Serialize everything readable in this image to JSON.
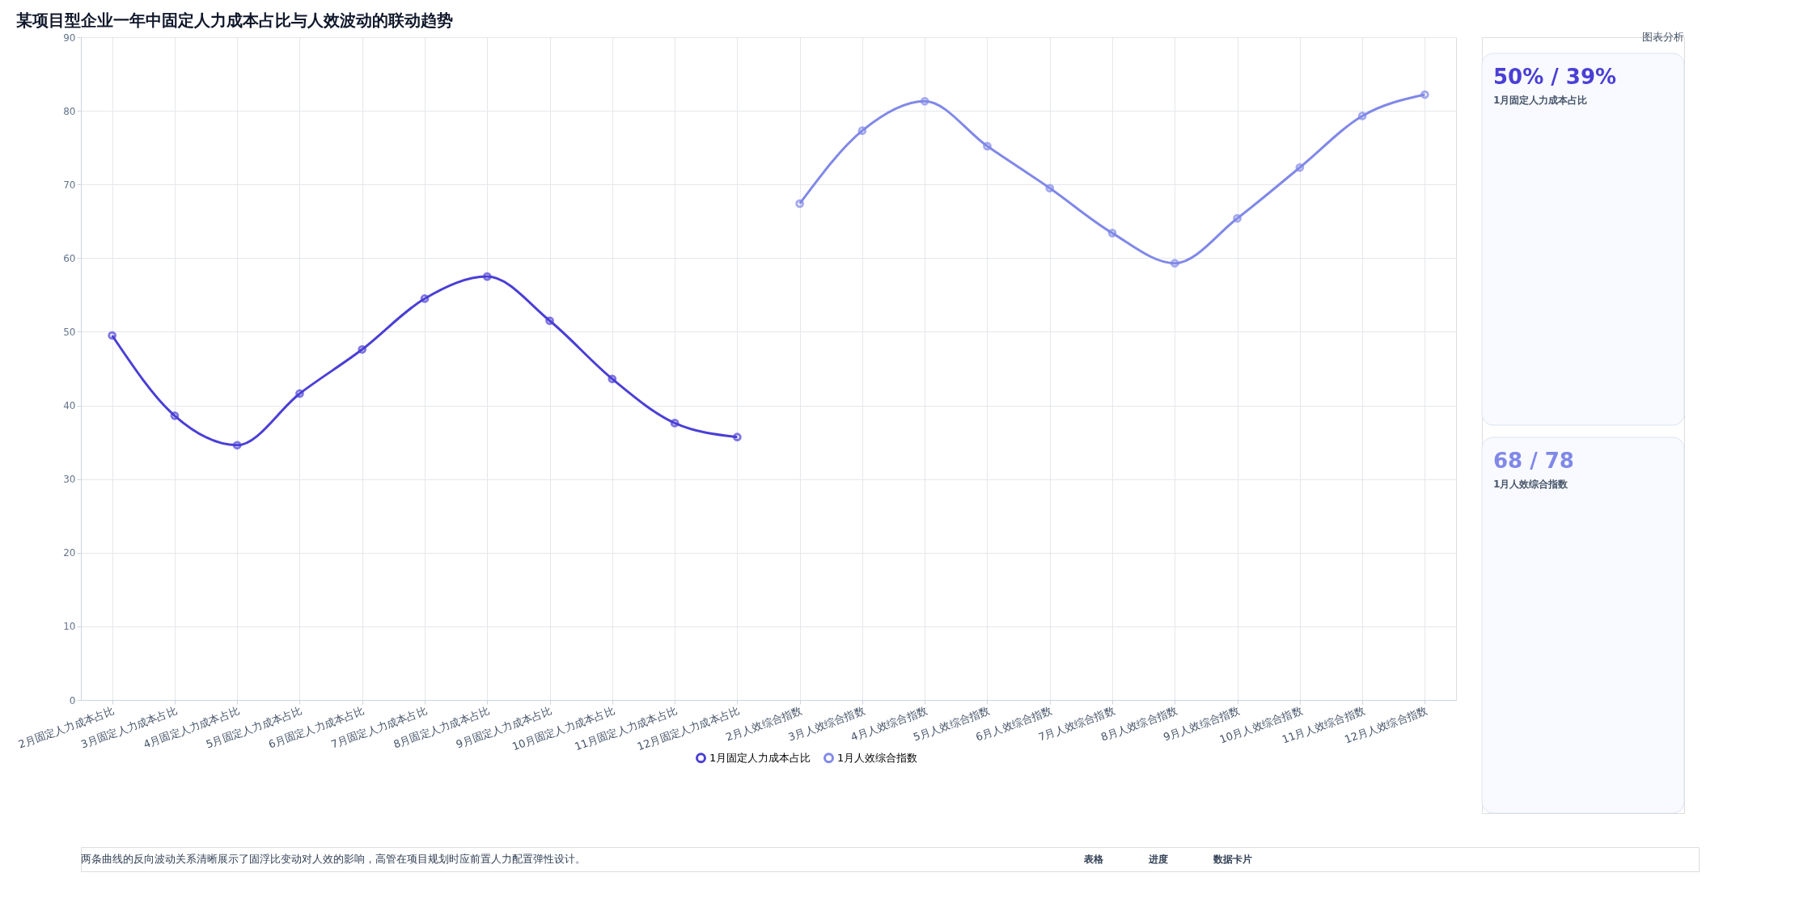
{
  "chart_data": {
    "type": "line",
    "title": "某项目型企业一年中固定人力成本占比与人效波动的联动趋势",
    "categories": [
      "2月固定人力成本占比",
      "3月固定人力成本占比",
      "4月固定人力成本占比",
      "5月固定人力成本占比",
      "6月固定人力成本占比",
      "7月固定人力成本占比",
      "8月固定人力成本占比",
      "9月固定人力成本占比",
      "10月固定人力成本占比",
      "11月固定人力成本占比",
      "12月固定人力成本占比",
      "2月人效综合指数",
      "3月人效综合指数",
      "4月人效综合指数",
      "5月人效综合指数",
      "6月人效综合指数",
      "7月人效综合指数",
      "8月人效综合指数",
      "9月人效综合指数",
      "10月人效综合指数",
      "11月人效综合指数",
      "12月人效综合指数"
    ],
    "series": [
      {
        "name": "1月固定人力成本占比",
        "color": "#4a3fd6",
        "values": [
          49.5,
          38.6,
          34.6,
          41.6,
          47.6,
          54.5,
          57.5,
          51.5,
          43.6,
          37.6,
          35.7,
          null,
          null,
          null,
          null,
          null,
          null,
          null,
          null,
          null,
          null,
          null
        ]
      },
      {
        "name": "1月人效综合指数",
        "color": "#8088e8",
        "values": [
          null,
          null,
          null,
          null,
          null,
          null,
          null,
          null,
          null,
          null,
          null,
          67.4,
          77.3,
          81.3,
          75.2,
          69.5,
          63.4,
          59.3,
          65.4,
          72.3,
          79.3,
          82.2
        ]
      }
    ],
    "ylim": [
      0,
      90
    ],
    "yticks": [
      0,
      10,
      20,
      30,
      40,
      50,
      60,
      70,
      80,
      90
    ],
    "grid": true,
    "legend": "bottom",
    "marker": "circle",
    "line_style": "solid",
    "annotations": [
      "图表分析",
      "50% / 39%",
      "1月固定人力成本占比",
      "68 / 78",
      "1月人效综合指数",
      "两条曲线的反向波动关系清晰展示了固浮比变动对人效的影响，高管在项目规划时应前置人力配置弹性设计。",
      "表格",
      "进度",
      "数据卡片"
    ]
  }
}
